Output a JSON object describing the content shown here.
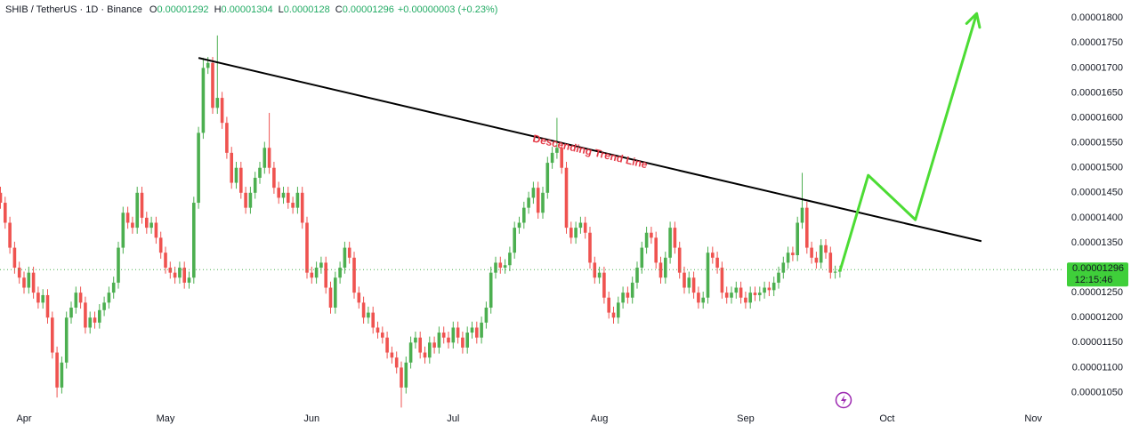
{
  "chart_data": {
    "type": "candlestick",
    "title": "SHIB / TetherUS · 1D · Binance",
    "ohlc_labels": [
      "O",
      "H",
      "L",
      "C"
    ],
    "change": "+0.00000003 (+0.23%)",
    "countdown": "12:15:46",
    "up_color": "#4caf50",
    "down_color": "#ef5350",
    "grid": false,
    "categories": [
      null,
      null,
      null,
      null,
      null,
      "Apr",
      null,
      null,
      null,
      null,
      null,
      null,
      null,
      null,
      null,
      null,
      null,
      null,
      null,
      null,
      null,
      null,
      null,
      null,
      null,
      null,
      null,
      null,
      null,
      null,
      null,
      null,
      null,
      null,
      null,
      "May",
      null,
      null,
      null,
      null,
      null,
      null,
      null,
      null,
      null,
      null,
      null,
      null,
      null,
      null,
      null,
      null,
      null,
      null,
      null,
      null,
      null,
      null,
      null,
      null,
      null,
      null,
      null,
      null,
      null,
      null,
      "Jun",
      null,
      null,
      null,
      null,
      null,
      null,
      null,
      null,
      null,
      null,
      null,
      null,
      null,
      null,
      null,
      null,
      null,
      null,
      null,
      null,
      null,
      null,
      null,
      null,
      null,
      null,
      null,
      null,
      null,
      "Jul",
      null,
      null,
      null,
      null,
      null,
      null,
      null,
      null,
      null,
      null,
      null,
      null,
      null,
      null,
      null,
      null,
      null,
      null,
      null,
      null,
      null,
      null,
      null,
      null,
      null,
      null,
      null,
      null,
      null,
      null,
      "Aug",
      null,
      null,
      null,
      null,
      null,
      null,
      null,
      null,
      null,
      null,
      null,
      null,
      null,
      null,
      null,
      null,
      null,
      null,
      null,
      null,
      null,
      null,
      null,
      null,
      null,
      null,
      null,
      null,
      null,
      null,
      "Sep",
      null,
      null,
      null,
      null,
      null,
      null,
      null,
      null,
      null,
      null,
      null,
      null,
      null,
      null,
      null,
      null,
      null,
      null,
      null,
      null,
      null,
      null,
      null,
      null,
      null,
      null,
      null,
      null,
      null,
      "Oct",
      null,
      null,
      null,
      null,
      null,
      null,
      null,
      null,
      null,
      null,
      null,
      null,
      null,
      null,
      null,
      null,
      null,
      null,
      null,
      null,
      null,
      null,
      null,
      null,
      null,
      null,
      null,
      null,
      null,
      null,
      "Nov",
      null,
      null
    ],
    "open": [
      1.45e-05,
      1.43e-05,
      1.39e-05,
      1.34e-05,
      1.3e-05,
      1.28e-05,
      1.26e-05,
      1.29e-05,
      1.25e-05,
      1.23e-05,
      1.245e-05,
      1.2e-05,
      1.13e-05,
      1.06e-05,
      1.11e-05,
      1.2e-05,
      1.22e-05,
      1.25e-05,
      1.23e-05,
      1.18e-05,
      1.2e-05,
      1.19e-05,
      1.215e-05,
      1.23e-05,
      1.25e-05,
      1.27e-05,
      1.34e-05,
      1.41e-05,
      1.39e-05,
      1.38e-05,
      1.45e-05,
      1.4e-05,
      1.38e-05,
      1.39e-05,
      1.36e-05,
      1.33e-05,
      1.3e-05,
      1.29e-05,
      1.28e-05,
      1.3e-05,
      1.27e-05,
      1.28e-05,
      1.43e-05,
      1.57e-05,
      1.7e-05,
      1.71e-05,
      1.62e-05,
      1.64e-05,
      1.59e-05,
      1.53e-05,
      1.47e-05,
      1.5e-05,
      1.45e-05,
      1.42e-05,
      1.45e-05,
      1.48e-05,
      1.5e-05,
      1.54e-05,
      1.5e-05,
      1.46e-05,
      1.44e-05,
      1.45e-05,
      1.43e-05,
      1.42e-05,
      1.45e-05,
      1.39e-05,
      1.29e-05,
      1.28e-05,
      1.3e-05,
      1.31e-05,
      1.26e-05,
      1.22e-05,
      1.28e-05,
      1.3e-05,
      1.34e-05,
      1.32e-05,
      1.25e-05,
      1.23e-05,
      1.2e-05,
      1.21e-05,
      1.18e-05,
      1.17e-05,
      1.16e-05,
      1.13e-05,
      1.12e-05,
      1.1e-05,
      1.06e-05,
      1.11e-05,
      1.15e-05,
      1.16e-05,
      1.13e-05,
      1.12e-05,
      1.15e-05,
      1.14e-05,
      1.17e-05,
      1.16e-05,
      1.15e-05,
      1.18e-05,
      1.16e-05,
      1.14e-05,
      1.17e-05,
      1.18e-05,
      1.16e-05,
      1.19e-05,
      1.22e-05,
      1.29e-05,
      1.31e-05,
      1.3e-05,
      1.305e-05,
      1.33e-05,
      1.38e-05,
      1.39e-05,
      1.42e-05,
      1.44e-05,
      1.46e-05,
      1.41e-05,
      1.45e-05,
      1.51e-05,
      1.53e-05,
      1.54e-05,
      1.5e-05,
      1.38e-05,
      1.36e-05,
      1.38e-05,
      1.39e-05,
      1.37e-05,
      1.31e-05,
      1.28e-05,
      1.29e-05,
      1.24e-05,
      1.21e-05,
      1.2e-05,
      1.23e-05,
      1.25e-05,
      1.24e-05,
      1.27e-05,
      1.3e-05,
      1.34e-05,
      1.37e-05,
      1.36e-05,
      1.31e-05,
      1.28e-05,
      1.32e-05,
      1.38e-05,
      1.34e-05,
      1.29e-05,
      1.26e-05,
      1.28e-05,
      1.25e-05,
      1.23e-05,
      1.24e-05,
      1.33e-05,
      1.32e-05,
      1.3e-05,
      1.25e-05,
      1.24e-05,
      1.25e-05,
      1.26e-05,
      1.24e-05,
      1.23e-05,
      1.25e-05,
      1.245e-05,
      1.25e-05,
      1.26e-05,
      1.255e-05,
      1.27e-05,
      1.29e-05,
      1.31e-05,
      1.33e-05,
      1.325e-05,
      1.39e-05,
      1.42e-05,
      1.34e-05,
      1.32e-05,
      1.31e-05,
      1.345e-05,
      1.33e-05,
      1.29e-05,
      1.292e-05,
      null,
      null,
      null,
      null,
      null,
      null,
      null,
      null,
      null,
      null,
      null,
      null,
      null,
      null,
      null,
      null,
      null,
      null,
      null,
      null,
      null,
      null,
      null,
      null,
      null,
      null,
      null,
      null,
      null,
      null,
      null,
      null,
      null,
      null,
      null,
      null,
      null,
      null,
      null,
      null,
      null,
      null,
      null
    ],
    "high": [
      1.462e-05,
      1.442e-05,
      1.402e-05,
      1.352e-05,
      1.312e-05,
      1.292e-05,
      1.302e-05,
      1.302e-05,
      1.262e-05,
      1.257e-05,
      1.257e-05,
      1.212e-05,
      1.142e-05,
      1.122e-05,
      1.212e-05,
      1.232e-05,
      1.262e-05,
      1.262e-05,
      1.242e-05,
      1.212e-05,
      1.212e-05,
      1.227e-05,
      1.242e-05,
      1.262e-05,
      1.282e-05,
      1.352e-05,
      1.422e-05,
      1.422e-05,
      1.402e-05,
      1.462e-05,
      1.462e-05,
      1.412e-05,
      1.402e-05,
      1.402e-05,
      1.372e-05,
      1.342e-05,
      1.312e-05,
      1.302e-05,
      1.312e-05,
      1.312e-05,
      1.292e-05,
      1.442e-05,
      1.582e-05,
      1.72e-05,
      1.722e-05,
      1.722e-05,
      1.765e-05,
      1.652e-05,
      1.602e-05,
      1.542e-05,
      1.512e-05,
      1.512e-05,
      1.462e-05,
      1.462e-05,
      1.492e-05,
      1.512e-05,
      1.552e-05,
      1.61e-05,
      1.512e-05,
      1.472e-05,
      1.462e-05,
      1.462e-05,
      1.442e-05,
      1.462e-05,
      1.462e-05,
      1.402e-05,
      1.302e-05,
      1.312e-05,
      1.322e-05,
      1.322e-05,
      1.272e-05,
      1.292e-05,
      1.312e-05,
      1.352e-05,
      1.352e-05,
      1.332e-05,
      1.262e-05,
      1.242e-05,
      1.222e-05,
      1.222e-05,
      1.192e-05,
      1.182e-05,
      1.172e-05,
      1.142e-05,
      1.132e-05,
      1.112e-05,
      1.122e-05,
      1.162e-05,
      1.172e-05,
      1.172e-05,
      1.142e-05,
      1.162e-05,
      1.162e-05,
      1.182e-05,
      1.182e-05,
      1.172e-05,
      1.192e-05,
      1.192e-05,
      1.172e-05,
      1.182e-05,
      1.192e-05,
      1.192e-05,
      1.202e-05,
      1.232e-05,
      1.302e-05,
      1.322e-05,
      1.322e-05,
      1.317e-05,
      1.342e-05,
      1.392e-05,
      1.402e-05,
      1.432e-05,
      1.452e-05,
      1.472e-05,
      1.472e-05,
      1.462e-05,
      1.522e-05,
      1.542e-05,
      1.6e-05,
      1.552e-05,
      1.512e-05,
      1.392e-05,
      1.392e-05,
      1.402e-05,
      1.402e-05,
      1.382e-05,
      1.322e-05,
      1.302e-05,
      1.302e-05,
      1.252e-05,
      1.222e-05,
      1.242e-05,
      1.262e-05,
      1.262e-05,
      1.282e-05,
      1.312e-05,
      1.352e-05,
      1.382e-05,
      1.382e-05,
      1.372e-05,
      1.322e-05,
      1.332e-05,
      1.392e-05,
      1.392e-05,
      1.352e-05,
      1.302e-05,
      1.292e-05,
      1.292e-05,
      1.262e-05,
      1.252e-05,
      1.342e-05,
      1.342e-05,
      1.332e-05,
      1.312e-05,
      1.262e-05,
      1.262e-05,
      1.272e-05,
      1.272e-05,
      1.252e-05,
      1.262e-05,
      1.262e-05,
      1.262e-05,
      1.272e-05,
      1.272e-05,
      1.282e-05,
      1.302e-05,
      1.322e-05,
      1.342e-05,
      1.342e-05,
      1.402e-05,
      1.49e-05,
      1.432e-05,
      1.352e-05,
      1.332e-05,
      1.357e-05,
      1.357e-05,
      1.342e-05,
      1.304e-05,
      1.304e-05,
      null,
      null,
      null,
      null,
      null,
      null,
      null,
      null,
      null,
      null,
      null,
      null,
      null,
      null,
      null,
      null,
      null,
      null,
      null,
      null,
      null,
      null,
      null,
      null,
      null,
      null,
      null,
      null,
      null,
      null,
      null,
      null,
      null,
      null,
      null,
      null,
      null,
      null,
      null,
      null,
      null,
      null,
      null
    ],
    "low": [
      1.418e-05,
      1.378e-05,
      1.328e-05,
      1.288e-05,
      1.268e-05,
      1.248e-05,
      1.248e-05,
      1.238e-05,
      1.218e-05,
      1.218e-05,
      1.188e-05,
      1.118e-05,
      1.04e-05,
      1.048e-05,
      1.098e-05,
      1.188e-05,
      1.208e-05,
      1.218e-05,
      1.168e-05,
      1.168e-05,
      1.178e-05,
      1.178e-05,
      1.203e-05,
      1.218e-05,
      1.238e-05,
      1.258e-05,
      1.328e-05,
      1.378e-05,
      1.368e-05,
      1.368e-05,
      1.388e-05,
      1.368e-05,
      1.368e-05,
      1.348e-05,
      1.318e-05,
      1.288e-05,
      1.278e-05,
      1.268e-05,
      1.268e-05,
      1.258e-05,
      1.258e-05,
      1.268e-05,
      1.418e-05,
      1.558e-05,
      1.688e-05,
      1.608e-05,
      1.608e-05,
      1.578e-05,
      1.518e-05,
      1.458e-05,
      1.458e-05,
      1.438e-05,
      1.408e-05,
      1.408e-05,
      1.438e-05,
      1.468e-05,
      1.488e-05,
      1.488e-05,
      1.448e-05,
      1.428e-05,
      1.428e-05,
      1.418e-05,
      1.408e-05,
      1.408e-05,
      1.378e-05,
      1.278e-05,
      1.268e-05,
      1.268e-05,
      1.288e-05,
      1.248e-05,
      1.208e-05,
      1.208e-05,
      1.268e-05,
      1.288e-05,
      1.308e-05,
      1.238e-05,
      1.218e-05,
      1.188e-05,
      1.188e-05,
      1.168e-05,
      1.158e-05,
      1.148e-05,
      1.118e-05,
      1.108e-05,
      1.088e-05,
      1.02e-05,
      1.048e-05,
      1.098e-05,
      1.138e-05,
      1.118e-05,
      1.108e-05,
      1.108e-05,
      1.128e-05,
      1.128e-05,
      1.148e-05,
      1.138e-05,
      1.138e-05,
      1.148e-05,
      1.128e-05,
      1.128e-05,
      1.158e-05,
      1.148e-05,
      1.148e-05,
      1.178e-05,
      1.208e-05,
      1.278e-05,
      1.288e-05,
      1.288e-05,
      1.293e-05,
      1.318e-05,
      1.368e-05,
      1.378e-05,
      1.408e-05,
      1.428e-05,
      1.398e-05,
      1.398e-05,
      1.438e-05,
      1.498e-05,
      1.518e-05,
      1.488e-05,
      1.368e-05,
      1.348e-05,
      1.348e-05,
      1.368e-05,
      1.358e-05,
      1.298e-05,
      1.268e-05,
      1.268e-05,
      1.228e-05,
      1.198e-05,
      1.188e-05,
      1.188e-05,
      1.218e-05,
      1.228e-05,
      1.228e-05,
      1.258e-05,
      1.288e-05,
      1.328e-05,
      1.348e-05,
      1.298e-05,
      1.268e-05,
      1.268e-05,
      1.308e-05,
      1.328e-05,
      1.278e-05,
      1.248e-05,
      1.248e-05,
      1.238e-05,
      1.218e-05,
      1.218e-05,
      1.228e-05,
      1.308e-05,
      1.288e-05,
      1.238e-05,
      1.228e-05,
      1.228e-05,
      1.238e-05,
      1.228e-05,
      1.218e-05,
      1.218e-05,
      1.233e-05,
      1.233e-05,
      1.238e-05,
      1.243e-05,
      1.243e-05,
      1.258e-05,
      1.278e-05,
      1.298e-05,
      1.313e-05,
      1.313e-05,
      1.378e-05,
      1.328e-05,
      1.308e-05,
      1.298e-05,
      1.298e-05,
      1.318e-05,
      1.278e-05,
      1.278e-05,
      1.28e-05,
      null,
      null,
      null,
      null,
      null,
      null,
      null,
      null,
      null,
      null,
      null,
      null,
      null,
      null,
      null,
      null,
      null,
      null,
      null,
      null,
      null,
      null,
      null,
      null,
      null,
      null,
      null,
      null,
      null,
      null,
      null,
      null,
      null,
      null,
      null,
      null,
      null,
      null,
      null,
      null,
      null,
      null,
      null
    ],
    "close": [
      1.43e-05,
      1.39e-05,
      1.34e-05,
      1.3e-05,
      1.28e-05,
      1.26e-05,
      1.29e-05,
      1.25e-05,
      1.23e-05,
      1.245e-05,
      1.2e-05,
      1.13e-05,
      1.06e-05,
      1.11e-05,
      1.2e-05,
      1.22e-05,
      1.25e-05,
      1.23e-05,
      1.18e-05,
      1.2e-05,
      1.19e-05,
      1.215e-05,
      1.23e-05,
      1.25e-05,
      1.27e-05,
      1.34e-05,
      1.41e-05,
      1.39e-05,
      1.38e-05,
      1.45e-05,
      1.4e-05,
      1.38e-05,
      1.39e-05,
      1.36e-05,
      1.33e-05,
      1.3e-05,
      1.29e-05,
      1.28e-05,
      1.3e-05,
      1.27e-05,
      1.28e-05,
      1.43e-05,
      1.57e-05,
      1.7e-05,
      1.71e-05,
      1.62e-05,
      1.64e-05,
      1.59e-05,
      1.53e-05,
      1.47e-05,
      1.5e-05,
      1.45e-05,
      1.42e-05,
      1.45e-05,
      1.48e-05,
      1.5e-05,
      1.54e-05,
      1.5e-05,
      1.46e-05,
      1.44e-05,
      1.45e-05,
      1.43e-05,
      1.42e-05,
      1.45e-05,
      1.39e-05,
      1.29e-05,
      1.28e-05,
      1.3e-05,
      1.31e-05,
      1.26e-05,
      1.22e-05,
      1.28e-05,
      1.3e-05,
      1.34e-05,
      1.32e-05,
      1.25e-05,
      1.23e-05,
      1.2e-05,
      1.21e-05,
      1.18e-05,
      1.17e-05,
      1.16e-05,
      1.13e-05,
      1.12e-05,
      1.1e-05,
      1.06e-05,
      1.11e-05,
      1.15e-05,
      1.16e-05,
      1.13e-05,
      1.12e-05,
      1.15e-05,
      1.14e-05,
      1.17e-05,
      1.16e-05,
      1.15e-05,
      1.18e-05,
      1.16e-05,
      1.14e-05,
      1.17e-05,
      1.18e-05,
      1.16e-05,
      1.19e-05,
      1.22e-05,
      1.29e-05,
      1.31e-05,
      1.3e-05,
      1.305e-05,
      1.33e-05,
      1.38e-05,
      1.39e-05,
      1.42e-05,
      1.44e-05,
      1.46e-05,
      1.41e-05,
      1.45e-05,
      1.51e-05,
      1.53e-05,
      1.54e-05,
      1.5e-05,
      1.38e-05,
      1.36e-05,
      1.38e-05,
      1.39e-05,
      1.37e-05,
      1.31e-05,
      1.28e-05,
      1.29e-05,
      1.24e-05,
      1.21e-05,
      1.2e-05,
      1.23e-05,
      1.25e-05,
      1.24e-05,
      1.27e-05,
      1.3e-05,
      1.34e-05,
      1.37e-05,
      1.36e-05,
      1.31e-05,
      1.28e-05,
      1.32e-05,
      1.38e-05,
      1.34e-05,
      1.29e-05,
      1.26e-05,
      1.28e-05,
      1.25e-05,
      1.23e-05,
      1.24e-05,
      1.33e-05,
      1.32e-05,
      1.3e-05,
      1.25e-05,
      1.24e-05,
      1.25e-05,
      1.26e-05,
      1.24e-05,
      1.23e-05,
      1.25e-05,
      1.245e-05,
      1.25e-05,
      1.26e-05,
      1.255e-05,
      1.27e-05,
      1.29e-05,
      1.31e-05,
      1.33e-05,
      1.325e-05,
      1.39e-05,
      1.42e-05,
      1.34e-05,
      1.32e-05,
      1.31e-05,
      1.345e-05,
      1.33e-05,
      1.29e-05,
      1.292e-05,
      1.296e-05,
      null,
      null,
      null,
      null,
      null,
      null,
      null,
      null,
      null,
      null,
      null,
      null,
      null,
      null,
      null,
      null,
      null,
      null,
      null,
      null,
      null,
      null,
      null,
      null,
      null,
      null,
      null,
      null,
      null,
      null,
      null,
      null,
      null,
      null,
      null,
      null,
      null,
      null,
      null,
      null,
      null,
      null,
      null
    ],
    "ylim": [
      1.017e-05,
      1.836e-05
    ],
    "yticks": [
      {
        "value": 1.05e-05,
        "label": "0.00001050"
      },
      {
        "value": 1.1e-05,
        "label": "0.00001100"
      },
      {
        "value": 1.15e-05,
        "label": "0.00001150"
      },
      {
        "value": 1.2e-05,
        "label": "0.00001200"
      },
      {
        "value": 1.25e-05,
        "label": "0.00001250"
      },
      {
        "value": 1.3e-05,
        "label": "0.00001300"
      },
      {
        "value": 1.35e-05,
        "label": "0.00001350"
      },
      {
        "value": 1.4e-05,
        "label": "0.00001400"
      },
      {
        "value": 1.45e-05,
        "label": "0.00001450"
      },
      {
        "value": 1.5e-05,
        "label": "0.00001500"
      },
      {
        "value": 1.55e-05,
        "label": "0.00001550"
      },
      {
        "value": 1.6e-05,
        "label": "0.00001600"
      },
      {
        "value": 1.65e-05,
        "label": "0.00001650"
      },
      {
        "value": 1.7e-05,
        "label": "0.00001700"
      },
      {
        "value": 1.75e-05,
        "label": "0.00001750"
      },
      {
        "value": 1.8e-05,
        "label": "0.00001800"
      }
    ],
    "trend_line": {
      "label": "Descending Trend Line",
      "color": "#000000",
      "label_color": "#e53946",
      "index": [
        42,
        208
      ],
      "values": [
        1.72e-05,
        1.353e-05
      ]
    },
    "projection": {
      "color": "#4cdc34",
      "index": [
        178,
        184,
        194,
        207
      ],
      "values": [
        1.293e-05,
        1.485e-05,
        1.396e-05,
        1.809e-05
      ]
    }
  }
}
